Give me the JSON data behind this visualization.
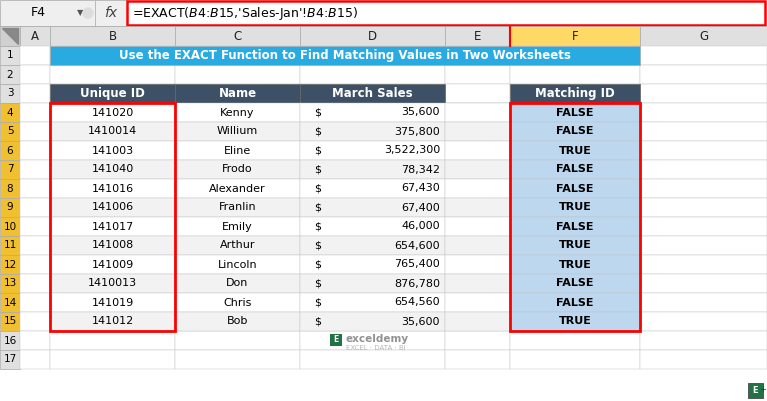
{
  "formula_bar_text": "=EXACT($B$4:$B$15,'Sales-Jan'!$B$4:$B$15)",
  "cell_ref": "F4",
  "title": "Use the EXACT Function to Find Matching Values in Two Worksheets",
  "col_headers": [
    "A",
    "B",
    "C",
    "D",
    "E",
    "F",
    "G"
  ],
  "row_headers": [
    "1",
    "2",
    "3",
    "4",
    "5",
    "6",
    "7",
    "8",
    "9",
    "10",
    "11",
    "12",
    "13",
    "14",
    "15",
    "16",
    "17"
  ],
  "table_headers": [
    "Unique ID",
    "Name",
    "March Sales",
    "Matching ID"
  ],
  "unique_ids": [
    "141020",
    "1410014",
    "141003",
    "141040",
    "141016",
    "141006",
    "141017",
    "141008",
    "141009",
    "1410013",
    "141019",
    "141012"
  ],
  "names": [
    "Kenny",
    "Willium",
    "Eline",
    "Frodo",
    "Alexander",
    "Franlin",
    "Emily",
    "Arthur",
    "Lincoln",
    "Don",
    "Chris",
    "Bob"
  ],
  "march_sales": [
    "35,600",
    "375,800",
    "3,522,300",
    "78,342",
    "67,430",
    "67,400",
    "46,000",
    "654,600",
    "765,400",
    "876,780",
    "654,560",
    "35,600"
  ],
  "matching_id": [
    "FALSE",
    "FALSE",
    "TRUE",
    "FALSE",
    "FALSE",
    "TRUE",
    "FALSE",
    "TRUE",
    "TRUE",
    "FALSE",
    "FALSE",
    "TRUE"
  ],
  "header_bg": "#3D5066",
  "header_text": "#FFFFFF",
  "title_bg": "#29ABE2",
  "title_text": "#FFFFFF",
  "match_bg": "#BDD7EE",
  "row_bg_white": "#FFFFFF",
  "row_bg_gray": "#F2F2F2",
  "col_header_bg": "#E0E0E0",
  "row_num_bg": "#E0E0E0",
  "row_num_yellow": "#F0C030",
  "selected_col_bg": "#FFD966",
  "red_border": "#FF0000",
  "formula_bar_bg": "#F8F8F8",
  "grid_line": "#C0C0C0",
  "dark_grid": "#888888",
  "corner_bg": "#D0D0D0"
}
